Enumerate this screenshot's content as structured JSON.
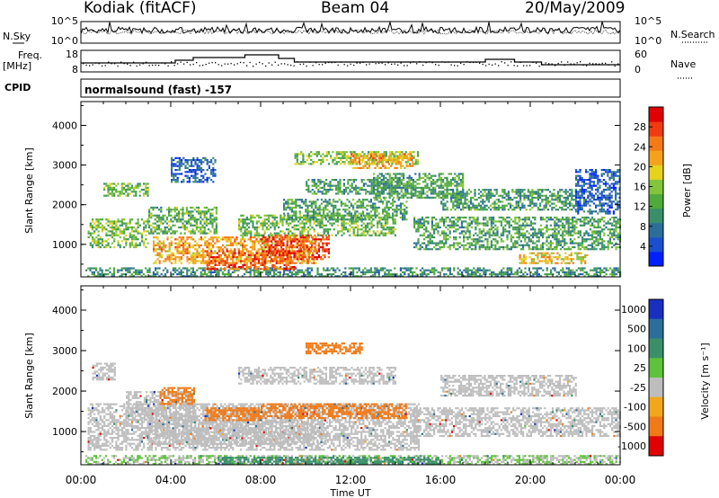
{
  "header": {
    "station": "Kodiak (fitACF)",
    "beam": "Beam 04",
    "date": "20/May/2009"
  },
  "top_panels": {
    "nsky_label": "N.Sky",
    "nsky_ticks": [
      "10^5",
      "10^0"
    ],
    "nsearch_label": "N.Search",
    "nsearch_ticks": [
      "10^5",
      "10^0"
    ],
    "freq_label_1": "Freq.",
    "freq_label_2": "[MHz]",
    "freq_ticks": [
      "18",
      "8"
    ],
    "nave_label": "Nave",
    "nave_ticks": [
      "60",
      "0"
    ],
    "cpid_label": "CPID",
    "cpid_text": "normalsound (fast) -157"
  },
  "chart_data": [
    {
      "type": "heatmap",
      "name": "power",
      "ylabel": "Slant Range [km]",
      "ylim": [
        180,
        4600
      ],
      "yticks": [
        "1000",
        "2000",
        "3000",
        "4000"
      ],
      "xlim_hours": [
        0,
        24
      ],
      "colorbar": {
        "label": "Power [dB]",
        "ticks": [
          "4",
          "8",
          "12",
          "16",
          "20",
          "24",
          "28"
        ],
        "range": [
          0,
          32
        ],
        "colors": [
          "#0020ff",
          "#1a4fcf",
          "#2c6e9a",
          "#3a8f6a",
          "#4faa3c",
          "#82c43a",
          "#e4d21c",
          "#f5a21a",
          "#f47a18",
          "#ef3b10",
          "#e00000"
        ]
      },
      "regions": [
        {
          "t0": 0.2,
          "t1": 24,
          "r0": 200,
          "r1": 420,
          "p": 10
        },
        {
          "t0": 0.3,
          "t1": 3.0,
          "r0": 950,
          "r1": 1650,
          "p": 14
        },
        {
          "t0": 1.0,
          "t1": 3.0,
          "r0": 2250,
          "r1": 2550,
          "p": 14
        },
        {
          "t0": 3.0,
          "t1": 6.0,
          "r0": 1300,
          "r1": 1950,
          "p": 13
        },
        {
          "t0": 3.2,
          "t1": 10.5,
          "r0": 550,
          "r1": 1200,
          "p": 22
        },
        {
          "t0": 5.5,
          "t1": 9.5,
          "r0": 400,
          "r1": 850,
          "p": 26
        },
        {
          "t0": 8.0,
          "t1": 11.0,
          "r0": 650,
          "r1": 1250,
          "p": 28
        },
        {
          "t0": 7.0,
          "t1": 14.0,
          "r0": 1250,
          "r1": 1750,
          "p": 14
        },
        {
          "t0": 9.0,
          "t1": 14.5,
          "r0": 1650,
          "r1": 2150,
          "p": 12
        },
        {
          "t0": 10.0,
          "t1": 14.8,
          "r0": 2300,
          "r1": 2650,
          "p": 11
        },
        {
          "t0": 9.5,
          "t1": 15.0,
          "r0": 3050,
          "r1": 3350,
          "p": 15
        },
        {
          "t0": 12.0,
          "t1": 14.8,
          "r0": 2950,
          "r1": 3300,
          "p": 22
        },
        {
          "t0": 13.0,
          "t1": 17.0,
          "r0": 2200,
          "r1": 2800,
          "p": 12
        },
        {
          "t0": 14.8,
          "t1": 24,
          "r0": 900,
          "r1": 1700,
          "p": 12
        },
        {
          "t0": 16.0,
          "t1": 22.0,
          "r0": 1900,
          "r1": 2400,
          "p": 11
        },
        {
          "t0": 19.5,
          "t1": 22.5,
          "r0": 550,
          "r1": 800,
          "p": 20
        },
        {
          "t0": 4.0,
          "t1": 6.0,
          "r0": 2600,
          "r1": 3200,
          "p": 6
        },
        {
          "t0": 22.0,
          "t1": 24,
          "r0": 1800,
          "r1": 2900,
          "p": 6
        }
      ]
    },
    {
      "type": "heatmap",
      "name": "velocity",
      "ylabel": "Slant Range [km]",
      "xlabel": "Time UT",
      "ylim": [
        180,
        4600
      ],
      "yticks": [
        "1000",
        "2000",
        "3000",
        "4000"
      ],
      "xticks": [
        "00:00",
        "04:00",
        "08:00",
        "12:00",
        "16:00",
        "20:00",
        "00:00"
      ],
      "xlim_hours": [
        0,
        24
      ],
      "colorbar": {
        "label": "Velocity [m s⁻¹]",
        "ticks": [
          "1000",
          "500",
          "100",
          "25",
          "-25",
          "-100",
          "-500",
          "-1000"
        ],
        "colors": [
          "#1a2fbf",
          "#2c6e9a",
          "#3a8f6a",
          "#5ec23a",
          "#bdbdbd",
          "#f2a61a",
          "#f07a18",
          "#e00000"
        ]
      },
      "regions": [
        {
          "t0": 0.2,
          "t1": 24,
          "r0": 200,
          "r1": 420,
          "v": 25
        },
        {
          "t0": 6.0,
          "t1": 16.0,
          "r0": 220,
          "r1": 380,
          "v": 100
        },
        {
          "t0": 0.3,
          "t1": 15.0,
          "r0": 550,
          "r1": 1700,
          "v": 0
        },
        {
          "t0": 3.0,
          "t1": 11.0,
          "r0": 700,
          "r1": 1300,
          "v": 0
        },
        {
          "t0": 2.0,
          "t1": 5.0,
          "r0": 1300,
          "r1": 2000,
          "v": 0
        },
        {
          "t0": 3.5,
          "t1": 5.0,
          "r0": 1700,
          "r1": 2100,
          "v": -300
        },
        {
          "t0": 5.5,
          "t1": 8.0,
          "r0": 1300,
          "r1": 1600,
          "v": -300
        },
        {
          "t0": 8.0,
          "t1": 14.5,
          "r0": 1350,
          "r1": 1700,
          "v": -150
        },
        {
          "t0": 10.0,
          "t1": 12.5,
          "r0": 2950,
          "r1": 3200,
          "v": -200
        },
        {
          "t0": 14.8,
          "t1": 24,
          "r0": 900,
          "r1": 1600,
          "v": 0
        },
        {
          "t0": 16.0,
          "t1": 22.0,
          "r0": 1900,
          "r1": 2400,
          "v": 0
        },
        {
          "t0": 0.5,
          "t1": 1.5,
          "r0": 2300,
          "r1": 2700,
          "v": 0
        },
        {
          "t0": 7.0,
          "t1": 14.0,
          "r0": 2200,
          "r1": 2600,
          "v": 0
        }
      ]
    }
  ]
}
